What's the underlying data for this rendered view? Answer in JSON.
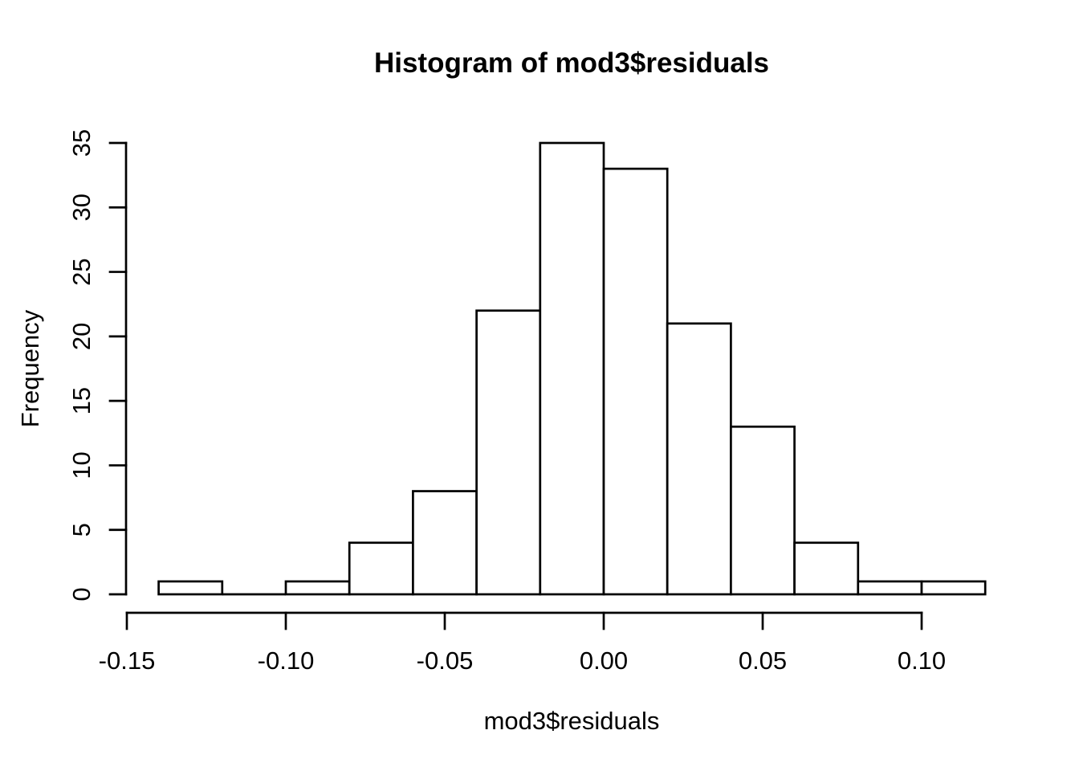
{
  "chart_data": {
    "type": "bar",
    "subtype": "histogram",
    "title": "Histogram of mod3$residuals",
    "xlabel": "mod3$residuals",
    "ylabel": "Frequency",
    "bin_width": 0.02,
    "breaks": [
      -0.14,
      -0.12,
      -0.1,
      -0.08,
      -0.06,
      -0.04,
      -0.02,
      0.0,
      0.02,
      0.04,
      0.06,
      0.08,
      0.1,
      0.12
    ],
    "counts": [
      1,
      0,
      1,
      4,
      8,
      22,
      35,
      33,
      21,
      13,
      4,
      1,
      1
    ],
    "x_tick_values": [
      -0.15,
      -0.1,
      -0.05,
      0.0,
      0.05,
      0.1
    ],
    "x_tick_labels": [
      "-0.15",
      "-0.10",
      "-0.05",
      "0.00",
      "0.05",
      "0.10"
    ],
    "y_tick_values": [
      0,
      5,
      10,
      15,
      20,
      25,
      30,
      35
    ],
    "y_tick_labels": [
      "0",
      "5",
      "10",
      "15",
      "20",
      "25",
      "30",
      "35"
    ],
    "xlim": [
      -0.15,
      0.1
    ],
    "ylim": [
      0,
      35
    ],
    "grid": false,
    "legend": "none",
    "colors": {
      "background": "#ffffff",
      "bar_fill": "#ffffff",
      "bar_border": "#000000",
      "axis": "#000000",
      "text": "#000000"
    }
  }
}
